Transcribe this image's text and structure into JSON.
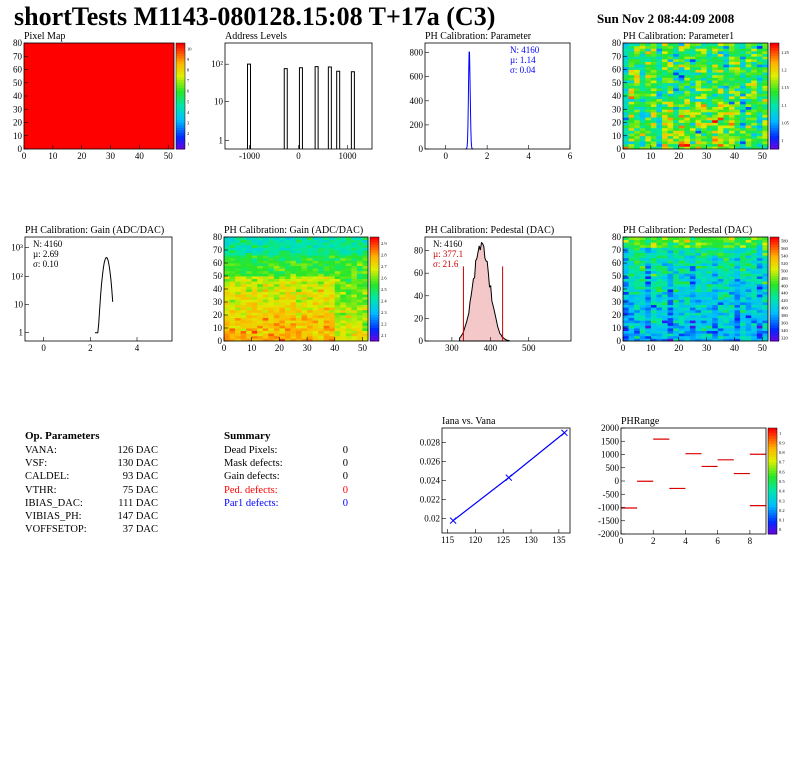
{
  "header": {
    "title": "shortTests M1143-080128.15:08 T+17a (C3)",
    "date": "Sun Nov  2 08:44:09 2008"
  },
  "chart_data": [
    {
      "id": "pixel-map",
      "type": "heatmap",
      "title": "Pixel Map",
      "xlim": [
        0,
        52
      ],
      "ylim": [
        0,
        80
      ],
      "xticks": [
        "0",
        "10",
        "20",
        "30",
        "40",
        "50"
      ],
      "yticks": [
        "0",
        "10",
        "20",
        "30",
        "40",
        "50",
        "60",
        "70",
        "80"
      ],
      "fill_color": "#ff0000",
      "z_range": [
        0,
        10
      ],
      "palette_ticks": [
        "10",
        "9",
        "8",
        "7",
        "6",
        "5",
        "4",
        "3",
        "2",
        "1"
      ]
    },
    {
      "id": "address-levels",
      "type": "bar",
      "title": "Address Levels",
      "xlim": [
        -1500,
        1500
      ],
      "log_y": true,
      "xticks": [
        "-1000",
        "0",
        "1000"
      ],
      "yticks": [
        "1",
        "10",
        "10²"
      ],
      "peaks": [
        {
          "x": -1000,
          "y": 400
        },
        {
          "x": -250,
          "y": 280
        },
        {
          "x": 60,
          "y": 300
        },
        {
          "x": 380,
          "y": 330
        },
        {
          "x": 650,
          "y": 320
        },
        {
          "x": 820,
          "y": 230
        },
        {
          "x": 1120,
          "y": 220
        }
      ]
    },
    {
      "id": "ph-param",
      "type": "bar",
      "title": "PH Calibration: Parameter",
      "xlim": [
        -1,
        6
      ],
      "ylim": [
        0,
        880
      ],
      "xticks": [
        "0",
        "2",
        "4",
        "6"
      ],
      "yticks": [
        "0",
        "200",
        "400",
        "600",
        "800"
      ],
      "stats": [
        "N: 4160",
        "µ: 1.14",
        "σ: 0.04"
      ],
      "mean": 1.14,
      "sigma": 0.04,
      "entries": 4160,
      "peak": 830,
      "color": "#0000ff"
    },
    {
      "id": "ph-param1",
      "type": "heatmap",
      "title": "PH Calibration: Parameter1",
      "xlim": [
        0,
        52
      ],
      "ylim": [
        0,
        80
      ],
      "xticks": [
        "0",
        "10",
        "20",
        "30",
        "40",
        "50"
      ],
      "yticks": [
        "0",
        "10",
        "20",
        "30",
        "40",
        "50",
        "60",
        "70",
        "80"
      ],
      "palette_ticks": [
        "1.25",
        "1.2",
        "1.15",
        "1.1",
        "1.05",
        "1"
      ],
      "pattern": "green-orange"
    },
    {
      "id": "gain-hist",
      "type": "bar",
      "title": "PH Calibration: Gain (ADC/DAC)",
      "xlim": [
        -0.8,
        5.5
      ],
      "log_y": true,
      "xticks": [
        "0",
        "2",
        "4"
      ],
      "yticks": [
        "1",
        "10",
        "10²",
        "10³"
      ],
      "stats": [
        "N: 4160",
        "µ: 2.69",
        "σ: 0.10"
      ],
      "mean": 2.69,
      "sigma": 0.1,
      "entries": 4160,
      "peak": 480
    },
    {
      "id": "gain-map",
      "type": "heatmap",
      "title": "PH Calibration: Gain (ADC/DAC)",
      "xlim": [
        0,
        52
      ],
      "ylim": [
        0,
        80
      ],
      "xticks": [
        "0",
        "10",
        "20",
        "30",
        "40",
        "50"
      ],
      "yticks": [
        "0",
        "10",
        "20",
        "30",
        "40",
        "50",
        "60",
        "70",
        "80"
      ],
      "palette_ticks": [
        "2.9",
        "2.8",
        "2.7",
        "2.6",
        "2.5",
        "2.4",
        "2.3",
        "2.2",
        "2.1"
      ],
      "pattern": "yellow-orange"
    },
    {
      "id": "pedestal-hist",
      "type": "bar",
      "title": "PH Calibration: Pedestal (DAC)",
      "xlim": [
        230,
        610
      ],
      "ylim": [
        0,
        92
      ],
      "xticks": [
        "300",
        "400",
        "500"
      ],
      "yticks": [
        "0",
        "20",
        "40",
        "60",
        "80"
      ],
      "stats": [
        "N: 4160",
        "µ: 377.1",
        "σ: 21.6"
      ],
      "mean": 377.1,
      "sigma": 21.6,
      "entries": 4160,
      "peak": 84,
      "cut_lines": [
        330,
        432
      ]
    },
    {
      "id": "pedestal-map",
      "type": "heatmap",
      "title": "PH Calibration: Pedestal (DAC)",
      "xlim": [
        0,
        52
      ],
      "ylim": [
        0,
        80
      ],
      "xticks": [
        "0",
        "10",
        "20",
        "30",
        "40",
        "50"
      ],
      "yticks": [
        "0",
        "10",
        "20",
        "30",
        "40",
        "50",
        "60",
        "70",
        "80"
      ],
      "palette_ticks": [
        "580",
        "560",
        "540",
        "520",
        "500",
        "480",
        "460",
        "440",
        "420",
        "400",
        "380",
        "360",
        "340",
        "320"
      ],
      "pattern": "cyan-blue"
    },
    {
      "id": "iana-vana",
      "type": "line",
      "title": "Iana vs. Vana",
      "xlim": [
        114,
        137
      ],
      "ylim": [
        0.0185,
        0.0295
      ],
      "xticks": [
        "115",
        "120",
        "125",
        "130",
        "135"
      ],
      "yticks": [
        "0.02",
        "0.022",
        "0.024",
        "0.026",
        "0.028"
      ],
      "x": [
        116,
        126,
        136
      ],
      "y": [
        0.0198,
        0.0243,
        0.029
      ],
      "color": "#0000ff"
    },
    {
      "id": "phrange",
      "type": "scatter",
      "title": "PHRange",
      "xlim": [
        0,
        9
      ],
      "ylim": [
        -2000,
        2000
      ],
      "xticks": [
        "0",
        "2",
        "4",
        "6",
        "8"
      ],
      "yticks": [
        "2000",
        "1500",
        "1000",
        "500",
        "0",
        "-500",
        "-1000",
        "-1500",
        "-2000"
      ],
      "palette_ticks": [
        "1",
        "0.9",
        "0.8",
        "0.7",
        "0.6",
        "0.5",
        "0.4",
        "0.3",
        "0.2",
        "0.1",
        "0"
      ],
      "segments": [
        {
          "x0": 0,
          "x1": 1,
          "y": -1020
        },
        {
          "x0": 1,
          "x1": 2,
          "y": -10
        },
        {
          "x0": 2,
          "x1": 3,
          "y": 1580
        },
        {
          "x0": 3,
          "x1": 4,
          "y": -280
        },
        {
          "x0": 4,
          "x1": 5,
          "y": 1030
        },
        {
          "x0": 5,
          "x1": 6,
          "y": 550
        },
        {
          "x0": 6,
          "x1": 7,
          "y": 800
        },
        {
          "x0": 7,
          "x1": 8,
          "y": 280
        },
        {
          "x0": 8,
          "x1": 9,
          "y": -930
        },
        {
          "x0": 8,
          "x1": 9,
          "y": 1010
        }
      ],
      "color": "#dd0000"
    }
  ],
  "op_params": {
    "title": "Op. Parameters",
    "rows": [
      {
        "key": "VANA:",
        "value": "126 DAC"
      },
      {
        "key": "VSF:",
        "value": "130 DAC"
      },
      {
        "key": "CALDEL:",
        "value": "93 DAC"
      },
      {
        "key": "VTHR:",
        "value": "75 DAC"
      },
      {
        "key": "IBIAS_DAC:",
        "value": "111 DAC"
      },
      {
        "key": "VIBIAS_PH:",
        "value": "147 DAC"
      },
      {
        "key": "VOFFSETOP:",
        "value": "37 DAC"
      }
    ]
  },
  "summary": {
    "title": "Summary",
    "rows": [
      {
        "key": "Dead Pixels:",
        "value": "0",
        "color": "#000000"
      },
      {
        "key": "Mask defects:",
        "value": "0",
        "color": "#000000"
      },
      {
        "key": "Gain defects:",
        "value": "0",
        "color": "#000000"
      },
      {
        "key": "Ped. defects:",
        "value": "0",
        "color": "#ff0000"
      },
      {
        "key": "Par1 defects:",
        "value": "0",
        "color": "#0000ff"
      }
    ]
  }
}
